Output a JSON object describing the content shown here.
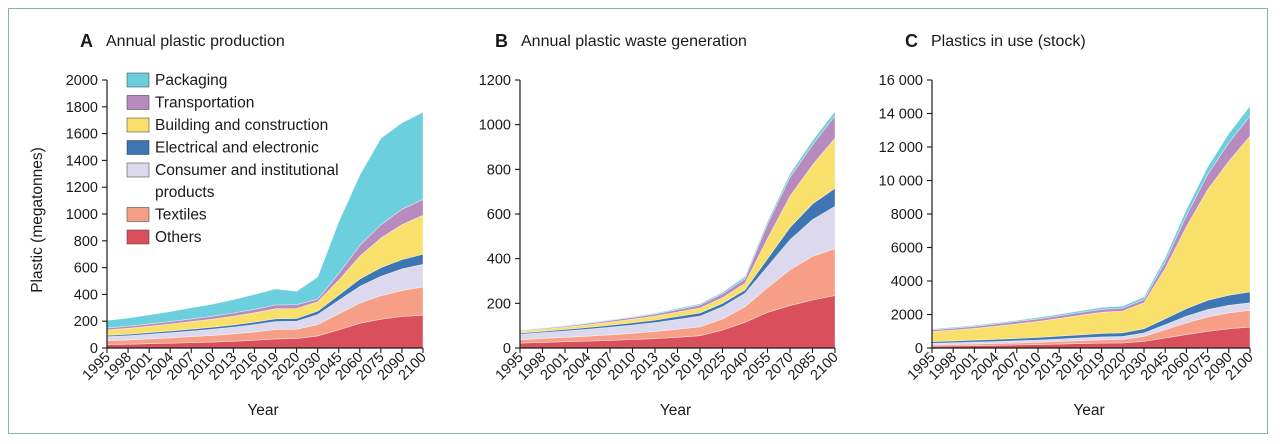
{
  "chart_data": [
    {
      "type": "area",
      "stacked": true,
      "panel_label": "A",
      "title": "Annual plastic production",
      "xlabel": "Year",
      "ylabel": "Plastic (megatonnes)",
      "ylim": [
        0,
        2000
      ],
      "yticks": [
        "0",
        "200",
        "400",
        "600",
        "800",
        "1000",
        "1200",
        "1400",
        "1600",
        "1800",
        "2000"
      ],
      "categories": [
        "1995",
        "1998",
        "2001",
        "2004",
        "2007",
        "2010",
        "2013",
        "2016",
        "2019",
        "2020",
        "2030",
        "2045",
        "2060",
        "2075",
        "2090",
        "2100"
      ],
      "series": [
        {
          "name": "Others",
          "values": [
            25,
            28,
            32,
            36,
            40,
            44,
            50,
            58,
            68,
            70,
            90,
            135,
            185,
            215,
            235,
            245
          ]
        },
        {
          "name": "Textiles",
          "values": [
            30,
            32,
            36,
            40,
            45,
            50,
            56,
            62,
            70,
            70,
            85,
            120,
            150,
            175,
            195,
            210
          ]
        },
        {
          "name": "Consumer and institutional products",
          "values": [
            30,
            32,
            35,
            38,
            42,
            46,
            50,
            55,
            60,
            60,
            75,
            100,
            125,
            145,
            160,
            170
          ]
        },
        {
          "name": "Electrical and electronic",
          "values": [
            10,
            11,
            12,
            13,
            14,
            15,
            16,
            18,
            20,
            20,
            25,
            40,
            55,
            65,
            70,
            75
          ]
        },
        {
          "name": "Building and construction",
          "values": [
            40,
            44,
            48,
            52,
            56,
            60,
            65,
            70,
            75,
            75,
            70,
            110,
            170,
            220,
            260,
            290
          ]
        },
        {
          "name": "Transportation",
          "values": [
            15,
            16,
            17,
            18,
            20,
            22,
            24,
            26,
            28,
            28,
            20,
            50,
            80,
            100,
            115,
            120
          ]
        },
        {
          "name": "Packaging",
          "values": [
            55,
            60,
            67,
            75,
            83,
            90,
            100,
            110,
            120,
            100,
            165,
            385,
            525,
            645,
            645,
            650
          ]
        }
      ]
    },
    {
      "type": "area",
      "stacked": true,
      "panel_label": "B",
      "title": "Annual plastic waste generation",
      "xlabel": "Year",
      "ylabel": "",
      "ylim": [
        0,
        1200
      ],
      "yticks": [
        "0",
        "200",
        "400",
        "600",
        "800",
        "1000",
        "1200"
      ],
      "categories": [
        "1995",
        "1998",
        "2001",
        "2004",
        "2007",
        "2010",
        "2013",
        "2016",
        "2019",
        "2025",
        "2040",
        "2055",
        "2070",
        "2085",
        "2100"
      ],
      "series": [
        {
          "name": "Others",
          "values": [
            22,
            25,
            28,
            31,
            34,
            38,
            42,
            48,
            55,
            80,
            115,
            160,
            190,
            215,
            235
          ]
        },
        {
          "name": "Textiles",
          "values": [
            15,
            18,
            20,
            22,
            25,
            28,
            32,
            36,
            40,
            50,
            70,
            110,
            160,
            195,
            210
          ]
        },
        {
          "name": "Consumer and institutional products",
          "values": [
            25,
            26,
            28,
            31,
            34,
            37,
            40,
            44,
            48,
            55,
            60,
            95,
            135,
            165,
            190
          ]
        },
        {
          "name": "Electrical and electronic",
          "values": [
            5,
            6,
            7,
            8,
            9,
            10,
            11,
            13,
            14,
            15,
            15,
            35,
            55,
            70,
            80
          ]
        },
        {
          "name": "Building and construction",
          "values": [
            8,
            9,
            10,
            12,
            14,
            16,
            18,
            20,
            22,
            25,
            30,
            90,
            140,
            175,
            225
          ]
        },
        {
          "name": "Transportation",
          "values": [
            3,
            4,
            5,
            6,
            7,
            8,
            9,
            11,
            13,
            18,
            20,
            65,
            85,
            90,
            100
          ]
        },
        {
          "name": "Packaging",
          "values": [
            2,
            2,
            2,
            3,
            3,
            3,
            4,
            5,
            6,
            7,
            10,
            12,
            15,
            18,
            20
          ]
        }
      ]
    },
    {
      "type": "area",
      "stacked": true,
      "panel_label": "C",
      "title": "Plastics in use (stock)",
      "xlabel": "Year",
      "ylabel": "",
      "ylim": [
        0,
        16000
      ],
      "yticks": [
        "0",
        "2000",
        "4000",
        "6000",
        "8000",
        "10 000",
        "12 000",
        "14 000",
        "16 000"
      ],
      "categories": [
        "1995",
        "1998",
        "2001",
        "2004",
        "2007",
        "2010",
        "2013",
        "2016",
        "2019",
        "2020",
        "2030",
        "2045",
        "2060",
        "2075",
        "2090",
        "2100"
      ],
      "series": [
        {
          "name": "Others",
          "values": [
            100,
            120,
            140,
            160,
            180,
            200,
            230,
            260,
            290,
            300,
            400,
            600,
            800,
            1000,
            1150,
            1250
          ]
        },
        {
          "name": "Textiles",
          "values": [
            80,
            90,
            100,
            110,
            120,
            140,
            160,
            180,
            200,
            210,
            300,
            500,
            700,
            850,
            950,
            1000
          ]
        },
        {
          "name": "Consumer and institutional products",
          "values": [
            100,
            105,
            110,
            120,
            130,
            140,
            150,
            160,
            170,
            180,
            200,
            300,
            400,
            450,
            450,
            450
          ]
        },
        {
          "name": "Electrical and electronic",
          "values": [
            100,
            110,
            120,
            130,
            140,
            150,
            170,
            190,
            210,
            220,
            250,
            350,
            450,
            550,
            600,
            650
          ]
        },
        {
          "name": "Building and construction",
          "values": [
            600,
            650,
            700,
            780,
            870,
            960,
            1060,
            1160,
            1260,
            1300,
            1550,
            3000,
            4900,
            6600,
            8000,
            9300
          ]
        },
        {
          "name": "Transportation",
          "values": [
            100,
            110,
            120,
            130,
            140,
            150,
            160,
            170,
            180,
            180,
            200,
            400,
            650,
            900,
            1100,
            1200
          ]
        },
        {
          "name": "Packaging",
          "values": [
            50,
            55,
            60,
            65,
            70,
            80,
            90,
            100,
            110,
            110,
            150,
            250,
            350,
            450,
            550,
            600
          ]
        }
      ]
    }
  ],
  "legend": [
    {
      "name": "Packaging",
      "lines": [
        "Packaging"
      ],
      "color": "#6ccfdd"
    },
    {
      "name": "Transportation",
      "lines": [
        "Transportation"
      ],
      "color": "#b88bbf"
    },
    {
      "name": "Building and construction",
      "lines": [
        "Building and construction"
      ],
      "color": "#f8e06a"
    },
    {
      "name": "Electrical and electronic",
      "lines": [
        "Electrical and electronic"
      ],
      "color": "#3e75b4"
    },
    {
      "name": "Consumer and institutional products",
      "lines": [
        "Consumer and institutional",
        "products"
      ],
      "color": "#dcd9ee"
    },
    {
      "name": "Textiles",
      "lines": [
        "Textiles"
      ],
      "color": "#f69f86"
    },
    {
      "name": "Others",
      "lines": [
        "Others"
      ],
      "color": "#d9505c"
    }
  ],
  "colors": {
    "Others": "#d9505c",
    "Textiles": "#f69f86",
    "Consumer and institutional products": "#dcd9ee",
    "Electrical and electronic": "#3e75b4",
    "Building and construction": "#f8e06a",
    "Transportation": "#b88bbf",
    "Packaging": "#6ccfdd"
  }
}
